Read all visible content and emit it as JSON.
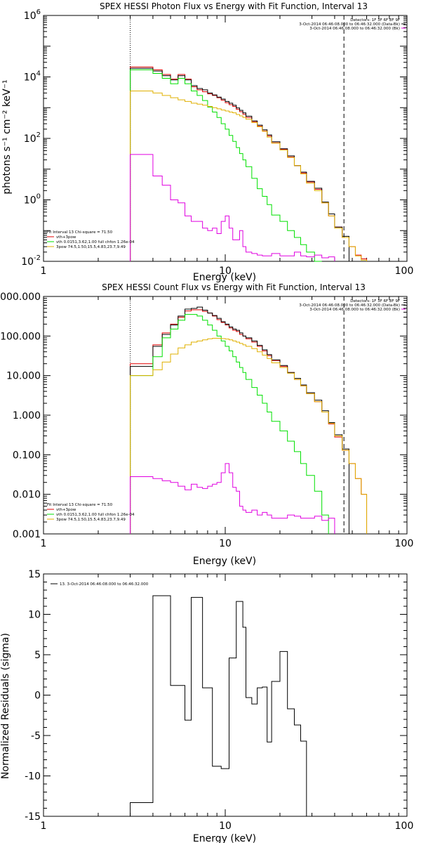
{
  "colors": {
    "black": "#000000",
    "red": "#e00000",
    "green": "#00e000",
    "yellow": "#e0b000",
    "magenta": "#e000e0",
    "orange": "#ff8000"
  },
  "chart_data": [
    {
      "type": "line",
      "title": "SPEX HESSI Photon Flux vs Energy with Fit Function, Interval 13",
      "xlabel": "Energy (keV)",
      "ylabel": "photons s⁻¹ cm⁻² keV⁻¹",
      "xlog": true,
      "ylog": true,
      "xlim": [
        1,
        100
      ],
      "ylim": [
        0.01,
        1000000
      ],
      "xticks": [
        "1",
        "10",
        "100"
      ],
      "yticks": [
        {
          "v": 0.01,
          "base": "10",
          "exp": "-2"
        },
        {
          "v": 1,
          "base": "10",
          "exp": "0"
        },
        {
          "v": 100,
          "base": "10",
          "exp": "2"
        },
        {
          "v": 10000,
          "base": "10",
          "exp": "4"
        },
        {
          "v": 1000000,
          "base": "10",
          "exp": "6"
        }
      ],
      "vlines": [
        {
          "x": 3,
          "style": "dotted"
        },
        {
          "x": 45,
          "style": "dashed"
        }
      ],
      "legend_right": {
        "lines": [
          "Detectors: 1F 3F 6F 8F 9F",
          "3-Oct-2014 06:46:08.000 to 06:46:32.000 (Data-Bk)",
          "3-Oct-2014 06:46:08.000 to 06:46:32.000 (Bk)"
        ],
        "line_colors": [
          "",
          "black",
          "magenta"
        ]
      },
      "legend_left": {
        "lines": [
          "Fit Interval 13   Chi-square = 71.50",
          "vth+3pow",
          "vth 0.0151,3.62,1.00  full chfon 1.26e-04",
          "3pow 74.5,1.50,15.5,4.83,23.7,9.49"
        ],
        "line_colors": [
          "",
          "red",
          "green",
          "yellow"
        ]
      },
      "edges": [
        3,
        3.5,
        4,
        4.5,
        5,
        5.5,
        6,
        6.5,
        7,
        7.5,
        8,
        8.5,
        9,
        9.5,
        10,
        10.5,
        11,
        11.5,
        12,
        12.5,
        13,
        14,
        15,
        16,
        17,
        18,
        20,
        22,
        24,
        26,
        28,
        31,
        34,
        37,
        40,
        44,
        48,
        52,
        56,
        60
      ],
      "series": [
        {
          "name": "vth+3pow",
          "color": "red",
          "values": [
            21000,
            21000,
            17000,
            12000,
            8500,
            12000,
            8500,
            4800,
            3800,
            3300,
            2800,
            2500,
            2100,
            1750,
            1450,
            1250,
            1100,
            880,
            740,
            610,
            480,
            350,
            250,
            175,
            120,
            72,
            44,
            25,
            13,
            7.5,
            3.8,
            2.2,
            0.8,
            0.3,
            0.13,
            0.06,
            0.03,
            0.016,
            0.012
          ]
        },
        {
          "name": "",
          "color": "black",
          "values": [
            19000,
            19000,
            15500,
            11000,
            8000,
            11000,
            8000,
            5200,
            4200,
            3800,
            3000,
            2600,
            2200,
            1900,
            1600,
            1400,
            1200,
            980,
            820,
            680,
            530,
            370,
            270,
            190,
            130,
            78,
            46,
            27,
            13,
            8,
            4,
            2.4,
            0.85,
            0.35,
            0.13,
            0.065
          ]
        },
        {
          "name": "vth 0.0151,3.62,1.00  full chfon 1.26e-04",
          "color": "green",
          "values": [
            17000,
            17000,
            13000,
            9000,
            6000,
            9000,
            6000,
            3500,
            2500,
            1700,
            1050,
            720,
            480,
            300,
            200,
            125,
            80,
            50,
            32,
            20,
            12,
            5,
            2.3,
            1.3,
            0.7,
            0.32,
            0.2,
            0.1,
            0.06,
            0.035,
            0.02,
            0.01
          ]
        },
        {
          "name": "3pow 74.5,1.50,15.5,4.83,23.7,9.49",
          "color": "yellow",
          "values": [
            3500,
            3500,
            3000,
            2500,
            2100,
            1800,
            1600,
            1400,
            1300,
            1200,
            1100,
            1000,
            920,
            840,
            780,
            720,
            680,
            600,
            540,
            480,
            420,
            330,
            240,
            170,
            110,
            70,
            42,
            24,
            13,
            7,
            3.5,
            2,
            0.8,
            0.3,
            0.12,
            0.06,
            0.03,
            0.015,
            0.011
          ]
        },
        {
          "name": "",
          "color": "magenta",
          "values": [
            30,
            30,
            6,
            3,
            1,
            0.8,
            0.3,
            0.2,
            0.2,
            0.12,
            0.1,
            0.12,
            0.08,
            0.2,
            0.3,
            0.12,
            0.05,
            0.05,
            0.1,
            0.03,
            0.02,
            0.018,
            0.016,
            0.015,
            0.015,
            0.018,
            0.015,
            0.015,
            0.02,
            0.015,
            0.014,
            0.016,
            0.013,
            0.014
          ]
        }
      ]
    },
    {
      "type": "line",
      "title": "SPEX HESSI Count Flux vs Energy with Fit Function, Interval 13",
      "xlabel": "Energy (keV)",
      "ylabel": "",
      "xlog": true,
      "ylog": true,
      "xlim": [
        1,
        100
      ],
      "ylim": [
        0.001,
        1000
      ],
      "xticks": [
        "1",
        "10",
        "100"
      ],
      "yticks": [
        {
          "v": 0.001,
          "label": "0.001"
        },
        {
          "v": 0.01,
          "label": "0.010"
        },
        {
          "v": 0.1,
          "label": "0.100"
        },
        {
          "v": 1,
          "label": "1.000"
        },
        {
          "v": 10,
          "label": "10.000"
        },
        {
          "v": 100,
          "label": "100.000"
        },
        {
          "v": 1000,
          "label": "1000.000"
        }
      ],
      "vlines": [
        {
          "x": 3,
          "style": "dotted"
        },
        {
          "x": 45,
          "style": "dashed"
        }
      ],
      "legend_right": {
        "lines": [
          "Detectors: 1F 3F 6F 8F 9F",
          "3-Oct-2014 06:46:08.000 to 06:46:32.000 (Data-Bk)",
          "3-Oct-2014 06:46:08.000 to 06:46:32.000 (Bk)"
        ],
        "line_colors": [
          "",
          "black",
          "magenta"
        ]
      },
      "legend_left": {
        "lines": [
          "Fit Interval 13   Chi-square = 71.50",
          "vth+3pow",
          "vth 0.0151,3.62,1.00  full chfon 1.26e-04",
          "3pow 74.5,1.50,15.5,4.83,23.7,9.49"
        ],
        "line_colors": [
          "",
          "red",
          "green",
          "yellow"
        ]
      },
      "edges": [
        3,
        3.5,
        4,
        4.5,
        5,
        5.5,
        6,
        6.5,
        7,
        7.5,
        8,
        8.5,
        9,
        9.5,
        10,
        10.5,
        11,
        11.5,
        12,
        12.5,
        13,
        14,
        15,
        16,
        17,
        18,
        20,
        22,
        24,
        26,
        28,
        31,
        34,
        37,
        40,
        44,
        48,
        52,
        56,
        60
      ],
      "series": [
        {
          "name": "vth+3pow",
          "color": "red",
          "values": [
            20,
            20,
            60,
            120,
            200,
            300,
            430,
            460,
            460,
            420,
            380,
            320,
            260,
            220,
            190,
            160,
            140,
            130,
            110,
            100,
            85,
            70,
            55,
            42,
            32,
            24,
            17,
            12,
            8,
            5.5,
            3.5,
            2.2,
            1.2,
            0.6,
            0.28,
            0.13,
            0.06,
            0.025,
            0.01
          ]
        },
        {
          "name": "",
          "color": "black",
          "values": [
            17,
            17,
            55,
            110,
            190,
            320,
            480,
            500,
            540,
            450,
            380,
            330,
            280,
            230,
            200,
            170,
            150,
            140,
            120,
            100,
            90,
            75,
            58,
            45,
            34,
            25,
            18,
            12,
            8.5,
            5.8,
            3.7,
            2.4,
            1.3,
            0.65,
            0.32,
            0.14
          ]
        },
        {
          "name": "vth 0.0151,3.62,1.00  full chfon 1.26e-04",
          "color": "green",
          "values": [
            10,
            10,
            30,
            90,
            150,
            250,
            350,
            350,
            320,
            250,
            190,
            140,
            100,
            75,
            55,
            42,
            30,
            22,
            16,
            12,
            8,
            5,
            3.2,
            2,
            1.2,
            0.7,
            0.4,
            0.22,
            0.12,
            0.06,
            0.03,
            0.012,
            0.003
          ]
        },
        {
          "name": "3pow 74.5,1.50,15.5,4.83,23.7,9.49",
          "color": "yellow",
          "values": [
            10,
            10,
            14,
            22,
            35,
            50,
            60,
            70,
            75,
            80,
            85,
            88,
            88,
            86,
            84,
            80,
            75,
            70,
            65,
            60,
            55,
            48,
            40,
            33,
            27,
            21,
            16,
            11.5,
            8,
            5.5,
            3.5,
            2.2,
            1.2,
            0.62,
            0.3,
            0.13,
            0.06,
            0.025,
            0.01
          ]
        },
        {
          "name": "",
          "color": "magenta",
          "values": [
            0.028,
            0.028,
            0.025,
            0.022,
            0.02,
            0.016,
            0.013,
            0.018,
            0.015,
            0.014,
            0.016,
            0.018,
            0.02,
            0.035,
            0.06,
            0.035,
            0.015,
            0.012,
            0.005,
            0.004,
            0.0035,
            0.004,
            0.003,
            0.0035,
            0.003,
            0.0025,
            0.0025,
            0.003,
            0.0028,
            0.0025,
            0.0025,
            0.0028,
            0.0022,
            0.0025
          ]
        }
      ]
    },
    {
      "type": "line",
      "title": "",
      "xlabel": "Energy (keV)",
      "ylabel": "Normalized Residuals (sigma)",
      "xlog": true,
      "ylog": false,
      "xlim": [
        1,
        100
      ],
      "ylim": [
        -15,
        15
      ],
      "xticks": [
        "1",
        "10",
        "100"
      ],
      "yticks": [
        {
          "v": -15,
          "label": "-15"
        },
        {
          "v": -10,
          "label": "-10"
        },
        {
          "v": -5,
          "label": "-5"
        },
        {
          "v": 0,
          "label": "0"
        },
        {
          "v": 5,
          "label": "5"
        },
        {
          "v": 10,
          "label": "10"
        },
        {
          "v": 15,
          "label": "15"
        }
      ],
      "legend_left": {
        "lines": [
          "13.  3-Oct-2014 06:46:08.000 to 06:46:32.000"
        ],
        "line_colors": [
          "black"
        ]
      },
      "edges": [
        3,
        3.5,
        4,
        4.5,
        5,
        5.5,
        6,
        6.5,
        7,
        7.5,
        8,
        8.5,
        9,
        9.5,
        10,
        10.5,
        11,
        11.5,
        12,
        12.5,
        13,
        14,
        15,
        16,
        17,
        18,
        20,
        22,
        24,
        26,
        28,
        31,
        34,
        37,
        40,
        44,
        48
      ],
      "series": [
        {
          "name": "",
          "color": "black",
          "values": [
            -13.3,
            -13.3,
            12.3,
            12.3,
            1.2,
            1.2,
            -3.1,
            12.1,
            12.1,
            0.9,
            0.9,
            -8.8,
            -8.8,
            -9.1,
            -9.1,
            4.6,
            4.6,
            11.6,
            11.6,
            8.4,
            -0.3,
            -1.1,
            0.9,
            1,
            -5.8,
            1.7,
            5.4,
            -1.7,
            -3.7,
            -5.7
          ]
        }
      ]
    }
  ]
}
